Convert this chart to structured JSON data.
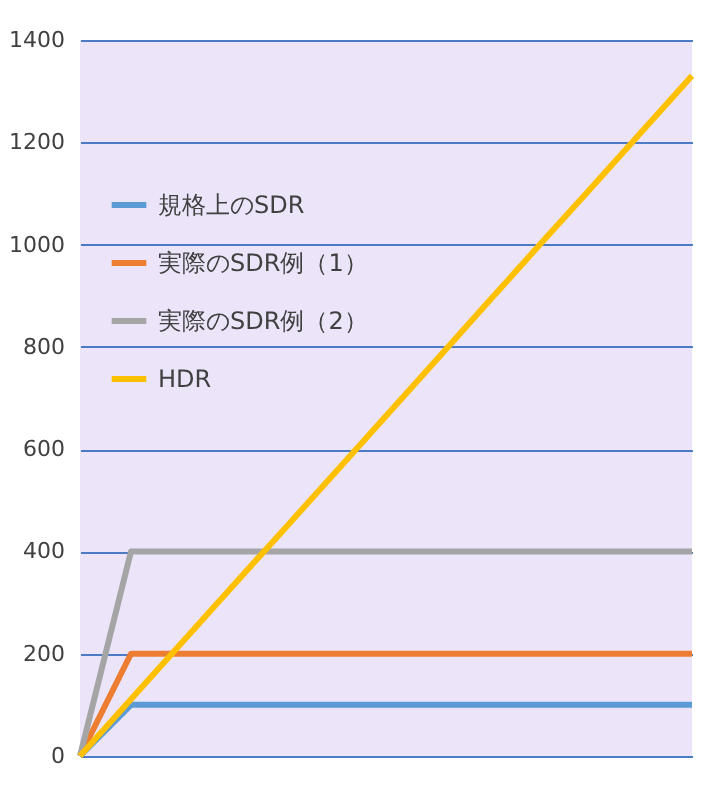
{
  "chart_data": {
    "type": "line",
    "categories": [
      null,
      null,
      null,
      null,
      null,
      null,
      null,
      null,
      null,
      null,
      null,
      null,
      null
    ],
    "series": [
      {
        "name": "規格上のSDR",
        "color": "#5b9bd5",
        "values": [
          0,
          100,
          100,
          100,
          100,
          100,
          100,
          100,
          100,
          100,
          100,
          100,
          100
        ]
      },
      {
        "name": "実際のSDR例（1）",
        "color": "#ed7d31",
        "values": [
          0,
          200,
          200,
          200,
          200,
          200,
          200,
          200,
          200,
          200,
          200,
          200,
          200
        ]
      },
      {
        "name": "実際のSDR例（2）",
        "color": "#a5a5a5",
        "values": [
          0,
          400,
          400,
          400,
          400,
          400,
          400,
          400,
          400,
          400,
          400,
          400,
          400
        ]
      },
      {
        "name": "HDR",
        "color": "#ffc000",
        "values": [
          0,
          111,
          222,
          333,
          443,
          554,
          665,
          776,
          887,
          998,
          1108,
          1219,
          1330
        ]
      }
    ],
    "ylim": [
      0,
      1400
    ],
    "yticks": [
      0,
      200,
      400,
      600,
      800,
      1000,
      1200,
      1400
    ],
    "grid": "y",
    "legend": "top left",
    "tick_labels": "y"
  }
}
